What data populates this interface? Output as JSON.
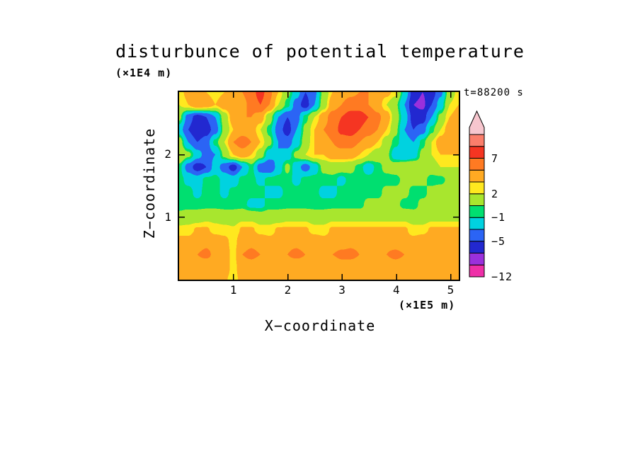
{
  "title": "disturbunce of potential temperature",
  "time_label": "t=88200 s",
  "axes": {
    "x": {
      "title": "X−coordinate",
      "unit_label": "(×1E5 m)",
      "ticks": [
        1,
        2,
        3,
        4,
        5
      ],
      "range": [
        0,
        5.15
      ]
    },
    "z": {
      "title": "Z−coordinate",
      "unit_label": "(×1E4 m)",
      "ticks": [
        1,
        2
      ],
      "range": [
        0,
        3
      ]
    }
  },
  "colorbar": {
    "levels": [
      -12,
      -9,
      -7,
      -5,
      -3,
      -1,
      0,
      2,
      3,
      5,
      7,
      9,
      12
    ],
    "colors": [
      "#EE2FA8",
      "#9B30DC",
      "#2228D0",
      "#2B64F5",
      "#00D2E0",
      "#00DF70",
      "#A8E62E",
      "#FFE81F",
      "#FFAA22",
      "#FF7A22",
      "#F53522",
      "#FB7E6B"
    ],
    "arrow_color": "#F7C6CE",
    "labels": [
      {
        "text": "−12",
        "edge": 0
      },
      {
        "text": "−5",
        "edge": 3
      },
      {
        "text": "−1",
        "edge": 5
      },
      {
        "text": "2",
        "edge": 7
      },
      {
        "text": "7",
        "edge": 10
      }
    ]
  },
  "chart_data": {
    "type": "heatmap",
    "title": "disturbunce of potential temperature",
    "time": "t=88200 s",
    "xlabel": "X−coordinate (×1E5 m)",
    "zlabel": "Z−coordinate (×1E4 m)",
    "x_range": [
      0,
      5.15
    ],
    "z_range": [
      0,
      3
    ],
    "levels": [
      -12,
      -9,
      -7,
      -5,
      -3,
      -1,
      0,
      2,
      3,
      5,
      7,
      9,
      12
    ],
    "grid_orientation": "rows listed top (z=max) to bottom (z=0), 32 columns spanning x range",
    "grid": [
      [
        2.5,
        3.5,
        4,
        3,
        2.5,
        3,
        4,
        5,
        6,
        8,
        5.5,
        3,
        0.5,
        -2,
        -5,
        -3.5,
        0.5,
        3,
        4,
        4.5,
        5,
        5,
        4,
        3.5,
        2.5,
        -1.5,
        -6,
        -7,
        -6,
        -3.5,
        1,
        2.5
      ],
      [
        2,
        3,
        4.5,
        4,
        3,
        4,
        5,
        4.5,
        5.5,
        7,
        5,
        2,
        -0.5,
        -4,
        -6,
        -3,
        1,
        4,
        5,
        6,
        6,
        5,
        4,
        2,
        0.5,
        -3,
        -7,
        -7.5,
        -5,
        -2,
        2,
        3
      ],
      [
        0.5,
        -4,
        -6,
        -5,
        -3,
        1,
        4,
        5,
        5,
        4,
        1,
        -3,
        -5,
        -4,
        -0.5,
        2,
        4,
        6,
        7,
        8,
        8,
        7,
        5.5,
        4,
        1,
        -2,
        -6,
        -6,
        -3,
        0.5,
        3,
        4
      ],
      [
        -2,
        -5,
        -7,
        -6,
        -4,
        0.5,
        3,
        4,
        4,
        2,
        -0.5,
        -4,
        -6,
        -3,
        0.5,
        3,
        5,
        6,
        7.5,
        8,
        7,
        6,
        5,
        3,
        0.5,
        -3,
        -5,
        -4,
        -0.5,
        2,
        4,
        5
      ],
      [
        1,
        -3,
        -5,
        -4,
        -0.5,
        2,
        5,
        6,
        5,
        3,
        0.5,
        -3,
        -4,
        -2,
        1,
        3,
        4,
        5,
        6,
        6,
        5,
        4,
        3,
        1,
        -0.5,
        -2,
        -3,
        -0.5,
        2,
        4,
        5,
        4
      ],
      [
        2,
        0.5,
        -2,
        -4,
        -3,
        0.5,
        3,
        4,
        3,
        1,
        -2,
        -3,
        -2,
        0.5,
        2,
        3,
        3,
        4,
        4,
        4,
        3,
        2,
        1,
        0.5,
        -2,
        -3,
        -2,
        0.5,
        2,
        3,
        3,
        3
      ],
      [
        -0.5,
        -4,
        -6,
        -5,
        -2,
        -4,
        -6,
        -3,
        -0.5,
        -4,
        -5,
        -2,
        0.5,
        -2,
        -4,
        -2,
        0.5,
        1,
        1,
        0.5,
        -0.5,
        -2,
        -0.5,
        0.5,
        1,
        2,
        2,
        1,
        1,
        2,
        2,
        2
      ],
      [
        -0.5,
        -1.5,
        -2,
        -0.5,
        -0.5,
        -1.5,
        -2,
        -0.5,
        -0.5,
        -1.5,
        -0.5,
        -0.5,
        -0.5,
        -1.5,
        -0.5,
        -0.5,
        -0.5,
        -0.5,
        -1.5,
        -0.5,
        -0.5,
        -0.5,
        -0.5,
        -0.5,
        -0.5,
        0.5,
        0.5,
        0.5,
        -0.5,
        -0.5,
        0.5,
        0.5
      ],
      [
        -0.5,
        -0.5,
        -1.5,
        -0.5,
        -0.5,
        -1.5,
        -0.5,
        -0.5,
        -0.5,
        -0.5,
        -1.5,
        -1.5,
        -0.5,
        -0.5,
        -0.5,
        -0.5,
        -1.5,
        -1.5,
        -0.5,
        -0.5,
        -0.5,
        -0.5,
        -0.5,
        0.5,
        0.5,
        0.5,
        -0.5,
        -0.5,
        0.5,
        1,
        1,
        0.5
      ],
      [
        -0.5,
        -0.5,
        -0.5,
        -0.5,
        -0.5,
        -0.5,
        -0.5,
        -0.5,
        -1.5,
        -1.5,
        -0.5,
        -0.5,
        -0.5,
        -0.5,
        -0.5,
        -0.5,
        -0.5,
        -0.5,
        -0.5,
        -0.5,
        -0.5,
        0.5,
        0.5,
        0.5,
        0.5,
        -0.5,
        -0.5,
        0.5,
        0.5,
        1,
        1,
        1
      ],
      [
        0.5,
        1,
        1,
        1.5,
        1.5,
        1,
        1,
        1.5,
        1.5,
        1,
        1,
        1,
        1.5,
        1.5,
        1.5,
        1,
        1,
        1.5,
        1.5,
        1.5,
        1.5,
        1.5,
        1.5,
        1.5,
        1.5,
        1.5,
        1,
        1,
        1.5,
        1.5,
        1.5,
        1.5
      ],
      [
        2.5,
        2.5,
        3.2,
        3.2,
        2.5,
        2.5,
        2.2,
        3.2,
        3.2,
        2.5,
        2.5,
        3.2,
        3.2,
        3.2,
        3.2,
        2.5,
        2.5,
        3.2,
        3.2,
        3.2,
        3.2,
        3.2,
        3.2,
        3.2,
        3.2,
        3.2,
        2.5,
        2.5,
        3.2,
        3.2,
        3.2,
        3.2
      ],
      [
        3.5,
        3.5,
        4,
        4.5,
        4,
        3.5,
        2.5,
        4,
        4.5,
        4,
        3.5,
        3.5,
        4.5,
        4.5,
        4,
        4,
        3.5,
        3.5,
        4,
        4.5,
        4.5,
        4,
        4,
        4.5,
        4,
        3.5,
        3.5,
        4,
        4.5,
        4,
        4,
        3.5
      ],
      [
        4,
        4,
        5,
        5.5,
        4.5,
        4,
        2.5,
        5,
        5.5,
        5,
        4,
        4,
        5,
        5.5,
        5,
        4.5,
        4,
        5,
        5.5,
        5.5,
        5,
        4.5,
        4,
        5,
        5.5,
        5,
        4.5,
        4,
        5,
        5,
        4.5,
        4
      ],
      [
        3.5,
        4,
        4,
        3.5,
        3.2,
        4,
        2.5,
        4,
        4,
        3.5,
        3.2,
        4,
        4,
        3.5,
        4,
        4,
        3.5,
        3.2,
        4,
        4,
        4,
        3.5,
        3.2,
        4,
        4,
        4,
        3.5,
        3.2,
        4,
        4,
        3.5,
        3.5
      ],
      [
        3.2,
        3.5,
        4,
        4,
        3.5,
        3.2,
        2.5,
        3.5,
        4,
        4,
        3.5,
        3.2,
        4,
        4,
        3.5,
        3.5,
        4,
        4,
        3.5,
        3.2,
        4,
        4,
        3.5,
        3.2,
        4,
        4,
        3.5,
        3.2,
        4,
        4,
        3.5,
        3.2
      ]
    ]
  }
}
